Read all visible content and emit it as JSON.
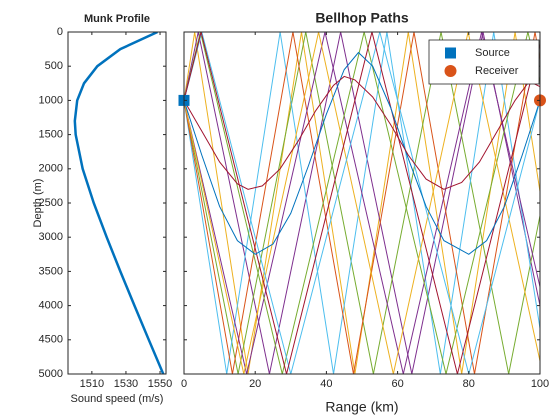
{
  "chart_data": [
    {
      "type": "line",
      "title": "Munk Profile",
      "xlabel": "Sound speed (m/s)",
      "ylabel": "Depth (m)",
      "xlim": [
        1496,
        1553.5
      ],
      "xticks": [
        1510,
        1530,
        1550
      ],
      "ylim": [
        0,
        5000
      ],
      "yticks": [
        0,
        500,
        1000,
        1500,
        2000,
        2500,
        3000,
        3500,
        4000,
        4500,
        5000
      ],
      "y_reversed": true,
      "series": [
        {
          "color": "#0072BD",
          "x": [
            1548.5,
            1526.7,
            1513.2,
            1505.4,
            1501.4,
            1500,
            1500.5,
            1504.6,
            1511.1,
            1518.7,
            1526.7,
            1535.0,
            1543.4,
            1551.9
          ],
          "values": [
            0,
            250,
            500,
            750,
            1000,
            1300,
            1500,
            2000,
            2500,
            3000,
            3500,
            4000,
            4500,
            5000
          ]
        }
      ]
    },
    {
      "type": "line",
      "title": "Bellhop Paths",
      "xlabel": "Range (km)",
      "xlim": [
        0,
        100
      ],
      "xticks": [
        0,
        20,
        40,
        60,
        80,
        100
      ],
      "ylim": [
        0,
        5000
      ],
      "yticks": [
        0,
        500,
        1000,
        1500,
        2000,
        2500,
        3000,
        3500,
        4000,
        4500,
        5000
      ],
      "y_reversed": true,
      "legend": "northeast",
      "series": [
        {
          "color": "#EDB120",
          "x": [
            0,
            3,
            18,
            33,
            48,
            63,
            78,
            93,
            100
          ],
          "values": [
            1000,
            0,
            5000,
            0,
            5000,
            0,
            5000,
            0,
            2333
          ]
        },
        {
          "color": "#7E2F8E",
          "x": [
            0,
            4,
            24,
            44,
            64,
            84,
            100
          ],
          "values": [
            1000,
            0,
            5000,
            0,
            5000,
            0,
            4000
          ]
        },
        {
          "color": "#77AC30",
          "x": [
            0,
            15.2,
            34.2,
            53.2,
            72.2,
            91.2,
            100
          ],
          "values": [
            1000,
            5000,
            0,
            5000,
            0,
            5000,
            2684
          ]
        },
        {
          "color": "#4DBEEE",
          "x": [
            0,
            12,
            27,
            42,
            57,
            72,
            87,
            100
          ],
          "values": [
            1000,
            5000,
            0,
            5000,
            0,
            5000,
            0,
            4333
          ]
        },
        {
          "color": "#D95319",
          "x": [
            0,
            13.6,
            30.6,
            47.6,
            64.6,
            81.6,
            98.6,
            100
          ],
          "values": [
            1000,
            5000,
            0,
            5000,
            0,
            5000,
            0,
            412
          ]
        },
        {
          "color": "#7E2F8E",
          "x": [
            0,
            17.6,
            39.6,
            61.6,
            83.6,
            100
          ],
          "values": [
            1000,
            5000,
            0,
            5000,
            0,
            3727
          ]
        },
        {
          "color": "#77AC30",
          "x": [
            0,
            4.6,
            27.6,
            50.6,
            73.6,
            96.6,
            100
          ],
          "values": [
            1000,
            0,
            5000,
            0,
            5000,
            0,
            739
          ]
        },
        {
          "color": "#EDB120",
          "x": [
            0,
            16.8,
            37.8,
            58.8,
            79.8,
            100
          ],
          "values": [
            1000,
            5000,
            0,
            5000,
            0,
            4810
          ]
        },
        {
          "color": "#4DBEEE",
          "x": [
            0,
            5,
            30,
            55,
            80,
            100
          ],
          "values": [
            1000,
            0,
            5000,
            0,
            5000,
            1000
          ]
        },
        {
          "color": "#A2142F",
          "x": [
            0,
            4.8,
            28.8,
            52.8,
            76.8,
            100
          ],
          "values": [
            1000,
            0,
            5000,
            0,
            5000,
            167
          ]
        },
        {
          "color": "#0072BD",
          "x": [
            0,
            5,
            10,
            15,
            20,
            25,
            30,
            35,
            40,
            45,
            49,
            53,
            58,
            63,
            68,
            73,
            80,
            85,
            90,
            95,
            100
          ],
          "values": [
            1000,
            1800,
            2550,
            3050,
            3250,
            3100,
            2650,
            1950,
            1200,
            550,
            300,
            500,
            1100,
            1850,
            2550,
            3050,
            3250,
            3050,
            2550,
            1800,
            1000
          ]
        },
        {
          "color": "#A2142F",
          "x": [
            0,
            5,
            10,
            15,
            18,
            22,
            27,
            32,
            37,
            42,
            45,
            48,
            53,
            58,
            63,
            68,
            73,
            78,
            83,
            88,
            93,
            97,
            100
          ],
          "values": [
            1000,
            1450,
            1900,
            2220,
            2300,
            2250,
            2000,
            1600,
            1150,
            780,
            650,
            700,
            950,
            1350,
            1800,
            2150,
            2300,
            2200,
            1900,
            1450,
            1000,
            720,
            800
          ]
        }
      ],
      "markers": [
        {
          "name": "Source",
          "marker": "square",
          "color": "#0072BD",
          "x": [
            0
          ],
          "values": [
            1000
          ]
        },
        {
          "name": "Receiver",
          "marker": "circle",
          "color": "#D95319",
          "x": [
            100
          ],
          "values": [
            1000
          ]
        }
      ]
    }
  ]
}
